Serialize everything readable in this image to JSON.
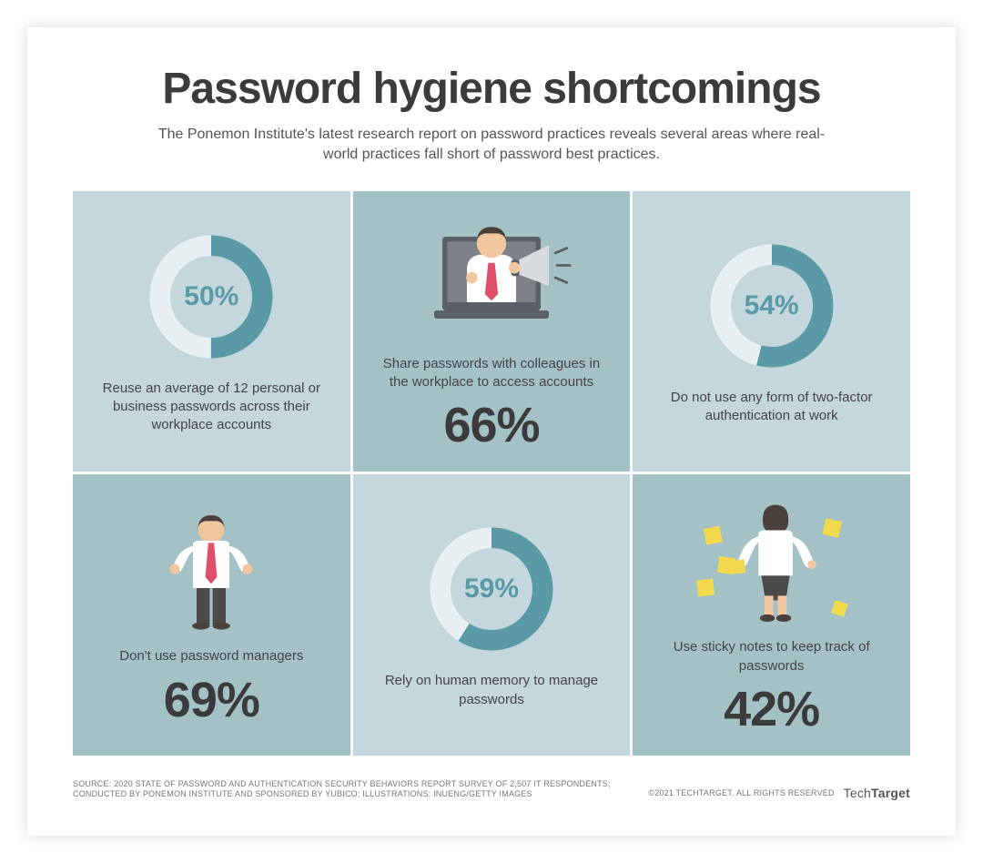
{
  "title": "Password hygiene shortcomings",
  "subtitle": "The Ponemon Institute's latest research report on password practices reveals several areas where real-world practices fall short of password best practices.",
  "background_color": "#ffffff",
  "cell_colors": {
    "light": "#c3d7dc",
    "dark": "#a4c1c6"
  },
  "text_color_body": "#444444",
  "text_color_heading": "#3b3b3b",
  "donut": {
    "track_color": "#e8f0f2",
    "fill_color": "#5a99a6",
    "stroke_width": 24,
    "radius": 60,
    "pct_color": "#5a99a6",
    "pct_fontsize": 30
  },
  "big_pct_fontsize": 54,
  "cells": [
    {
      "id": "reuse",
      "type": "donut",
      "bg": "light",
      "value": 50,
      "pct_label": "50%",
      "text": "Reuse an average of 12 personal or business passwords across their workplace accounts"
    },
    {
      "id": "share",
      "type": "illus-big",
      "bg": "dark",
      "illus": "megaphone-person",
      "text": "Share passwords with colleagues in the workplace to access accounts",
      "big_label": "66%"
    },
    {
      "id": "no2fa",
      "type": "donut",
      "bg": "light",
      "value": 54,
      "pct_label": "54%",
      "text": "Do not use any form of two-factor authentication at work"
    },
    {
      "id": "nopm",
      "type": "illus-big",
      "bg": "dark",
      "illus": "shrug-person",
      "text": "Don't use password managers",
      "big_label": "69%"
    },
    {
      "id": "memory",
      "type": "donut",
      "bg": "light",
      "value": 59,
      "pct_label": "59%",
      "text": "Rely on human memory to manage passwords"
    },
    {
      "id": "sticky",
      "type": "illus-big",
      "bg": "dark",
      "illus": "sticky-person",
      "text": "Use sticky notes to keep track of passwords",
      "big_label": "42%"
    }
  ],
  "illus_colors": {
    "skin": "#f2c79f",
    "hair_dark": "#4a413c",
    "shirt": "#ffffff",
    "tie": "#e04f6a",
    "laptop": "#5b6066",
    "laptop_screen": "#7c8288",
    "megaphone_body": "#d9dcde",
    "megaphone_handle": "#5b6066",
    "pants": "#4a4a4a",
    "sticky": "#f2d94e",
    "woman_hair": "#4a413c"
  },
  "footer": {
    "source": "SOURCE: 2020 STATE OF PASSWORD AND AUTHENTICATION SECURITY BEHAVIORS REPORT SURVEY OF 2,507 IT RESPONDENTS; CONDUCTED BY PONEMON INSTITUTE AND SPONSORED BY YUBICO; ILLUSTRATIONS: INUENG/GETTY IMAGES",
    "copyright": "©2021 TECHTARGET. ALL RIGHTS RESERVED",
    "logo_prefix": "Tech",
    "logo_suffix": "Target"
  }
}
